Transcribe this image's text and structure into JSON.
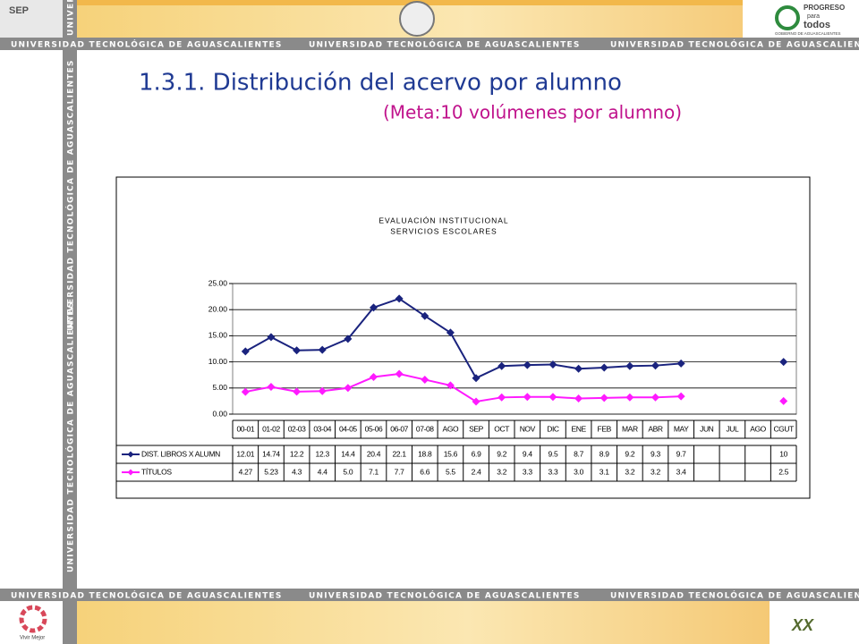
{
  "slide": {
    "band_text": "UNIVERSIDAD TECNOLÓGICA DE AGUASCALIENTES",
    "title": "1.3.1. Distribución del acervo por alumno",
    "subtitle": "(Meta:10 volúmenes por alumno)",
    "logo_sep": "SEP",
    "logo_progreso": "PROGRESO",
    "logo_para": "para",
    "logo_todos": "todos",
    "logo_gobierno": "GOBIERNO DE AGUASCALIENTES",
    "logo_vivir": "Vivir Mejor",
    "logo_xx": "XX"
  },
  "chart_data": {
    "type": "line",
    "title": "EVALUACIÓN INSTITUCIONAL",
    "subtitle": "SERVICIOS ESCOLARES",
    "categories": [
      "00-01",
      "01-02",
      "02-03",
      "03-04",
      "04-05",
      "05-06",
      "06-07",
      "07-08",
      "AGO",
      "SEP",
      "OCT",
      "NOV",
      "DIC",
      "ENE",
      "FEB",
      "MAR",
      "ABR",
      "MAY",
      "JUN",
      "JUL",
      "AGO",
      "CGUT"
    ],
    "ylim": [
      0,
      25
    ],
    "yticks": [
      {
        "value": 0,
        "label": "0.00"
      },
      {
        "value": 5,
        "label": "5.00"
      },
      {
        "value": 10,
        "label": "10.00"
      },
      {
        "value": 15,
        "label": "15.00"
      },
      {
        "value": 20,
        "label": "20.00"
      },
      {
        "value": 25,
        "label": "25.00"
      }
    ],
    "grid": true,
    "series": [
      {
        "name": "DIST. LIBROS X ALUMN",
        "color": "#1a237e",
        "values": [
          12.01,
          14.74,
          12.2,
          12.3,
          14.4,
          20.4,
          22.1,
          18.8,
          15.6,
          6.9,
          9.2,
          9.4,
          9.5,
          8.7,
          8.9,
          9.2,
          9.3,
          9.7,
          null,
          null,
          null,
          10
        ],
        "value_labels": [
          "12.01",
          "14.74",
          "12.2",
          "12.3",
          "14.4",
          "20.4",
          "22.1",
          "18.8",
          "15.6",
          "6.9",
          "9.2",
          "9.4",
          "9.5",
          "8.7",
          "8.9",
          "9.2",
          "9.3",
          "9.7",
          null,
          null,
          null,
          "10"
        ]
      },
      {
        "name": "TÍTULOS",
        "color": "#ff1aff",
        "values": [
          4.27,
          5.23,
          4.3,
          4.4,
          5.0,
          7.1,
          7.7,
          6.6,
          5.5,
          2.4,
          3.2,
          3.3,
          3.3,
          3.0,
          3.1,
          3.2,
          3.2,
          3.4,
          null,
          null,
          null,
          2.5
        ],
        "value_labels": [
          "4.27",
          "5.23",
          "4.3",
          "4.4",
          "5.0",
          "7.1",
          "7.7",
          "6.6",
          "5.5",
          "2.4",
          "3.2",
          "3.3",
          "3.3",
          "3.0",
          "3.1",
          "3.2",
          "3.2",
          "3.4",
          null,
          null,
          null,
          "2.5"
        ]
      }
    ]
  }
}
